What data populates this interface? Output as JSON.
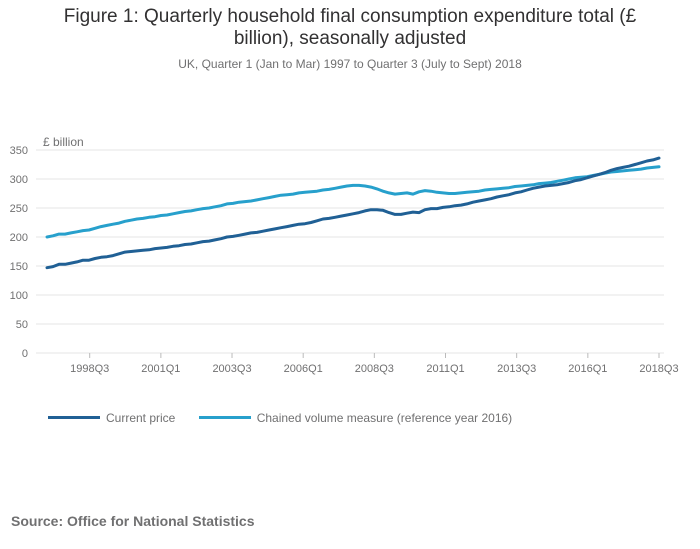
{
  "title_line1": "Figure 1: Quarterly household final consumption expenditure total (£",
  "title_line2": "billion), seasonally adjusted",
  "subtitle": "UK, Quarter 1 (Jan to Mar) 1997 to Quarter 3 (July to Sept) 2018",
  "source": "Source: Office for National Statistics",
  "colors": {
    "current_price": "#206095",
    "chained_volume": "#27A0CC",
    "grid": "#e6e6e6",
    "axis_text": "#707071"
  },
  "chart_data": {
    "type": "line",
    "ylabel": "£ billion",
    "ylim": [
      0,
      350
    ],
    "yticks": [
      0,
      50,
      100,
      150,
      200,
      250,
      300,
      350
    ],
    "xlim": [
      1997.0,
      2018.5
    ],
    "xticks": [
      {
        "label": "1998Q3",
        "x": 1998.5
      },
      {
        "label": "2001Q1",
        "x": 2001.0
      },
      {
        "label": "2003Q3",
        "x": 2003.5
      },
      {
        "label": "2006Q1",
        "x": 2006.0
      },
      {
        "label": "2008Q3",
        "x": 2008.5
      },
      {
        "label": "2011Q1",
        "x": 2011.0
      },
      {
        "label": "2013Q3",
        "x": 2013.5
      },
      {
        "label": "2016Q1",
        "x": 2016.0
      },
      {
        "label": "2018Q3",
        "x": 2018.5
      }
    ],
    "grid": true,
    "legend_position": "bottom-left",
    "x_start": "1997Q1",
    "series": [
      {
        "name": "Current price",
        "values": [
          147,
          149,
          153,
          153,
          155,
          157,
          160,
          160,
          163,
          165,
          166,
          168,
          171,
          174,
          175,
          176,
          177,
          178,
          180,
          181,
          182,
          184,
          185,
          187,
          188,
          190,
          192,
          193,
          195,
          197,
          200,
          201,
          203,
          205,
          207,
          208,
          210,
          212,
          214,
          216,
          218,
          220,
          222,
          223,
          225,
          228,
          231,
          232,
          234,
          236,
          238,
          240,
          242,
          245,
          247,
          247,
          246,
          242,
          239,
          239,
          241,
          243,
          242,
          247,
          249,
          249,
          251,
          252,
          254,
          255,
          257,
          260,
          262,
          264,
          266,
          269,
          271,
          273,
          276,
          278,
          281,
          284,
          286,
          288,
          289,
          290,
          292,
          294,
          297,
          299,
          302,
          305,
          308,
          311,
          315,
          318,
          320,
          322,
          325,
          328,
          331,
          333,
          336
        ]
      },
      {
        "name": "Chained volume measure (reference year 2016)",
        "values": [
          200,
          202,
          205,
          205,
          207,
          209,
          211,
          212,
          215,
          218,
          220,
          222,
          224,
          227,
          229,
          231,
          232,
          234,
          235,
          237,
          238,
          240,
          242,
          244,
          245,
          247,
          249,
          250,
          252,
          254,
          257,
          258,
          260,
          261,
          262,
          264,
          266,
          268,
          270,
          272,
          273,
          274,
          276,
          277,
          278,
          279,
          281,
          282,
          284,
          286,
          288,
          289,
          289,
          288,
          286,
          283,
          279,
          276,
          274,
          275,
          276,
          274,
          278,
          280,
          279,
          277,
          276,
          275,
          275,
          276,
          277,
          278,
          279,
          281,
          282,
          283,
          284,
          285,
          287,
          288,
          289,
          290,
          292,
          293,
          294,
          296,
          298,
          300,
          302,
          303,
          304,
          306,
          308,
          310,
          312,
          313,
          314,
          315,
          316,
          317,
          319,
          320,
          321
        ]
      }
    ]
  }
}
